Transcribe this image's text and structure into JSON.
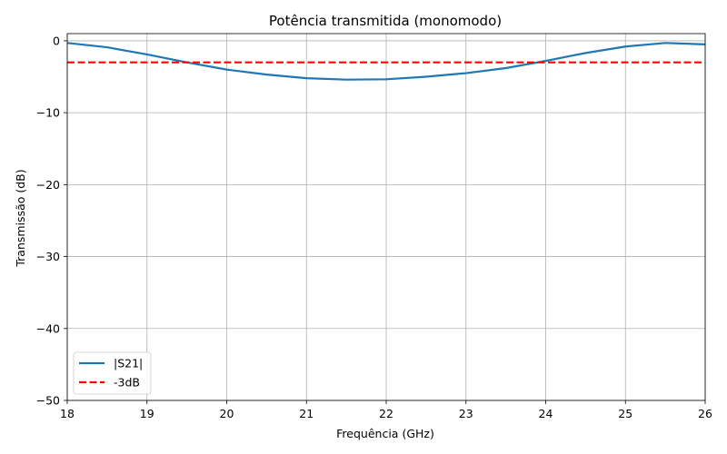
{
  "chart_data": {
    "type": "line",
    "title": "Potência transmitida (monomodo)",
    "xlabel": "Frequência (GHz)",
    "ylabel": "Transmissão (dB)",
    "xlim": [
      18,
      26
    ],
    "ylim": [
      -50,
      1
    ],
    "xticks": [
      18,
      19,
      20,
      21,
      22,
      23,
      24,
      25,
      26
    ],
    "yticks": [
      0,
      -10,
      -20,
      -30,
      -40,
      -50
    ],
    "xtick_labels": [
      "18",
      "19",
      "20",
      "21",
      "22",
      "23",
      "24",
      "25",
      "26"
    ],
    "ytick_labels": [
      "0",
      "−10",
      "−20",
      "−30",
      "−40",
      "−50"
    ],
    "grid": true,
    "legend_position": "lower-left",
    "series": [
      {
        "name": "|S21|",
        "color": "#1f77b4",
        "style": "solid",
        "x": [
          18,
          18.5,
          19,
          19.5,
          20,
          20.5,
          21,
          21.5,
          22,
          22.5,
          23,
          23.5,
          24,
          24.5,
          25,
          25.5,
          26
        ],
        "y": [
          -0.3,
          -0.9,
          -1.9,
          -3.0,
          -4.0,
          -4.7,
          -5.2,
          -5.4,
          -5.35,
          -5.0,
          -4.5,
          -3.8,
          -2.8,
          -1.7,
          -0.8,
          -0.3,
          -0.5
        ]
      },
      {
        "name": "-3dB",
        "color": "#ff0000",
        "style": "dashed",
        "x": [
          18,
          26
        ],
        "y": [
          -3,
          -3
        ]
      }
    ]
  }
}
